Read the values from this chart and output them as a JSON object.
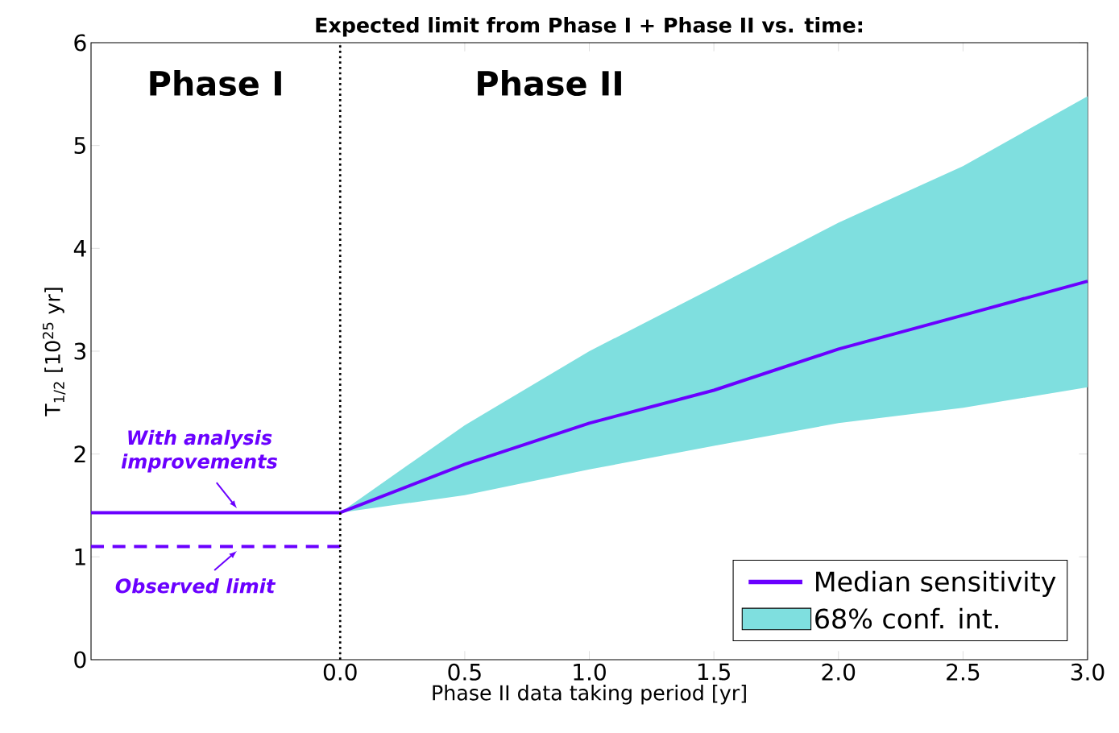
{
  "chart_data": {
    "type": "line",
    "title": "Expected limit from Phase I + Phase II vs. time:",
    "xlabel": "Phase II data taking period [yr]",
    "ylabel": "T$_{1/2}$ [10$^{25}$ yr]",
    "xlim": [
      -1,
      3
    ],
    "ylim": [
      0,
      6
    ],
    "xticks": [
      {
        "value": 0,
        "label": "0.0"
      },
      {
        "value": 0.5,
        "label": "0.5"
      },
      {
        "value": 1,
        "label": "1.0"
      },
      {
        "value": 1.5,
        "label": "1.5"
      },
      {
        "value": 2,
        "label": "2.0"
      },
      {
        "value": 2.5,
        "label": "2.5"
      },
      {
        "value": 3,
        "label": "3.0"
      }
    ],
    "yticks": [
      0,
      1,
      2,
      3,
      4,
      5,
      6
    ],
    "legend": "bottom right",
    "series": [
      {
        "name": "Median sensitivity",
        "color": "#6a00ff",
        "x": [
          -1,
          0,
          0.5,
          1,
          1.5,
          2,
          2.5,
          3
        ],
        "values": [
          1.43,
          1.43,
          1.9,
          2.3,
          2.62,
          3.02,
          3.35,
          3.68
        ],
        "lower": [
          null,
          1.43,
          1.6,
          1.85,
          2.08,
          2.3,
          2.45,
          2.65
        ],
        "upper": [
          null,
          1.43,
          2.28,
          3.0,
          3.62,
          4.25,
          4.8,
          5.48
        ]
      },
      {
        "type": "area",
        "name": "68% conf. int.",
        "color": "#7fdfdf"
      },
      {
        "color": "#6a00ff",
        "x": [
          -1,
          0
        ],
        "values": [
          1.1,
          1.1
        ],
        "line_style": "dashed"
      }
    ],
    "ref_lines": [
      {
        "axis": "x",
        "value": 0,
        "color": "#000000",
        "line_style": "dotted"
      }
    ],
    "annotations": [
      "Phase I",
      "Phase II",
      {
        "text": "With analysis improvements",
        "x": -0.41,
        "y": 1.43
      },
      {
        "text": "Observed limit",
        "x": -0.41,
        "y": 1.1
      }
    ]
  }
}
